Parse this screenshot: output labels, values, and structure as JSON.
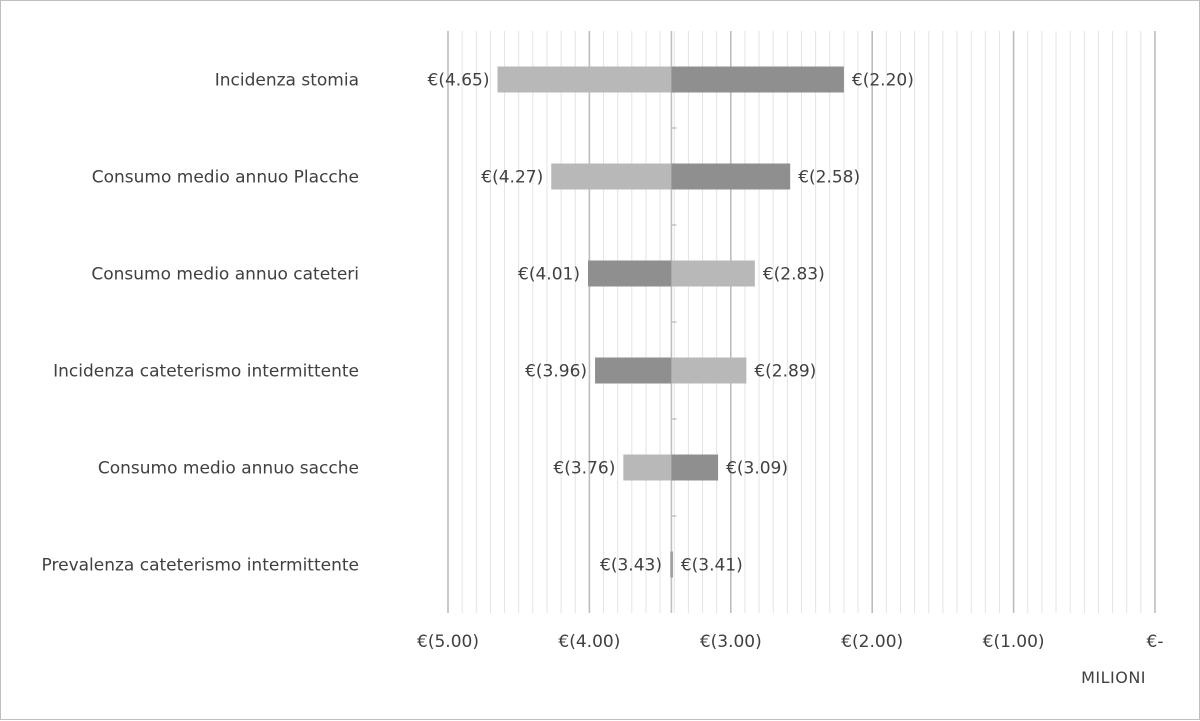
{
  "chart_data": {
    "type": "bar",
    "subtype": "tornado",
    "orientation": "horizontal",
    "categories": [
      "Incidenza stomia",
      "Consumo medio annuo Placche",
      "Consumo medio annuo cateteri",
      "Incidenza cateterismo intermittente",
      "Consumo medio annuo sacche",
      "Prevalenza cateterismo intermittente"
    ],
    "base_value": -3.42,
    "series": [
      {
        "values": [
          -4.65,
          -4.27,
          -4.01,
          -3.96,
          -3.76,
          -3.43
        ]
      },
      {
        "values": [
          -2.2,
          -2.58,
          -2.83,
          -2.89,
          -3.09,
          -3.41
        ]
      }
    ],
    "left_labels": [
      "€(4.65)",
      "€(4.27)",
      "€(4.01)",
      "€(3.96)",
      "€(3.76)",
      "€(3.43)"
    ],
    "right_labels": [
      "€(2.20)",
      "€(2.58)",
      "€(2.83)",
      "€(2.89)",
      "€(3.09)",
      "€(3.41)"
    ],
    "left_colors": [
      "#b8b8b8",
      "#b8b8b8",
      "#8f8f8f",
      "#8f8f8f",
      "#b8b8b8",
      "#b8b8b8"
    ],
    "right_colors": [
      "#8f8f8f",
      "#8f8f8f",
      "#b8b8b8",
      "#b8b8b8",
      "#8f8f8f",
      "#8f8f8f"
    ],
    "xlim": [
      -5.0,
      0.0
    ],
    "x_ticks": [
      -5,
      -4,
      -3,
      -2,
      -1,
      0
    ],
    "x_tick_labels": [
      "€(5.00)",
      "€(4.00)",
      "€(3.00)",
      "€(2.00)",
      "€(1.00)",
      "€-"
    ],
    "x_unit_label": "MILIONI",
    "grid": true,
    "legend": "none"
  }
}
